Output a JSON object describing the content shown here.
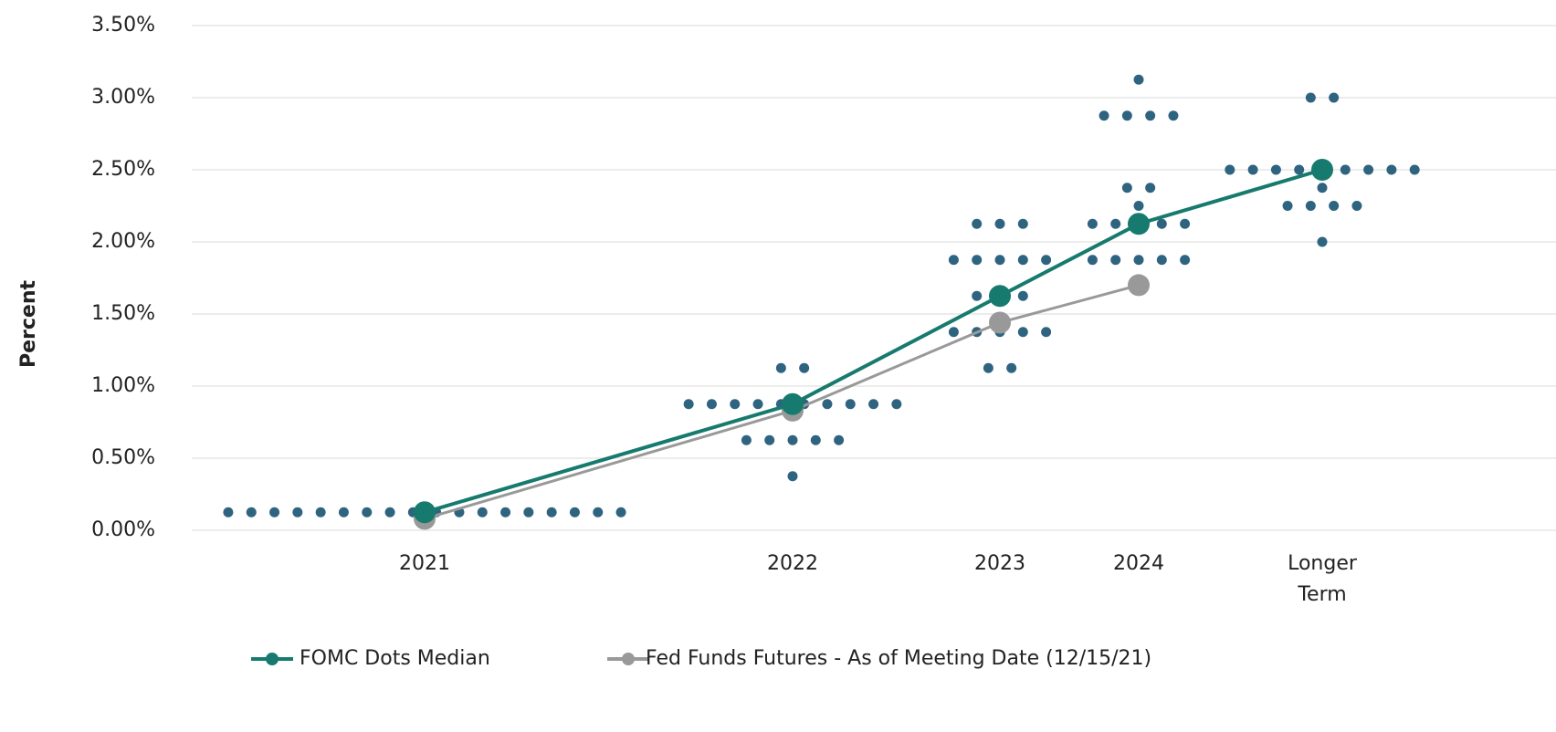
{
  "chart_data": {
    "type": "dot",
    "y_label": "Percent",
    "categories": [
      "2021",
      "2022",
      "2023",
      "2024",
      "Longer Term"
    ],
    "dots": [
      [
        0.125,
        0.125,
        0.125,
        0.125,
        0.125,
        0.125,
        0.125,
        0.125,
        0.125,
        0.125,
        0.125,
        0.125,
        0.125,
        0.125,
        0.125,
        0.125,
        0.125,
        0.125
      ],
      [
        0.375,
        0.625,
        0.625,
        0.625,
        0.625,
        0.625,
        0.875,
        0.875,
        0.875,
        0.875,
        0.875,
        0.875,
        0.875,
        0.875,
        0.875,
        0.875,
        1.125,
        1.125
      ],
      [
        1.125,
        1.125,
        1.375,
        1.375,
        1.375,
        1.375,
        1.375,
        1.625,
        1.625,
        1.625,
        1.875,
        1.875,
        1.875,
        1.875,
        1.875,
        2.125,
        2.125,
        2.125
      ],
      [
        1.875,
        1.875,
        1.875,
        1.875,
        1.875,
        2.125,
        2.125,
        2.125,
        2.125,
        2.125,
        2.25,
        2.375,
        2.375,
        2.875,
        2.875,
        2.875,
        2.875,
        3.125
      ],
      [
        2.0,
        2.25,
        2.25,
        2.25,
        2.25,
        2.375,
        2.5,
        2.5,
        2.5,
        2.5,
        2.5,
        2.5,
        2.5,
        2.5,
        2.5,
        3.0,
        3.0
      ]
    ],
    "dot_color": "#2f6480",
    "series": [
      {
        "name": "FOMC Dots Median",
        "color": "#177a6e",
        "values": [
          0.125,
          0.875,
          1.625,
          2.125,
          2.5
        ]
      },
      {
        "name": "Fed Funds Futures - As of Meeting Date (12/15/21)",
        "color": "#999999",
        "values": [
          0.08,
          0.83,
          1.44,
          1.7,
          null
        ]
      }
    ],
    "ylim": [
      0,
      3.5
    ],
    "yticks": [
      {
        "value": 0,
        "label": "0.00%"
      },
      {
        "value": 0.5,
        "label": "0.50%"
      },
      {
        "value": 1,
        "label": "1.00%"
      },
      {
        "value": 1.5,
        "label": "1.50%"
      },
      {
        "value": 2,
        "label": "2.00%"
      },
      {
        "value": 2.5,
        "label": "2.50%"
      },
      {
        "value": 3,
        "label": "3.00%"
      },
      {
        "value": 3.5,
        "label": "3.50%"
      }
    ],
    "grid": true
  }
}
